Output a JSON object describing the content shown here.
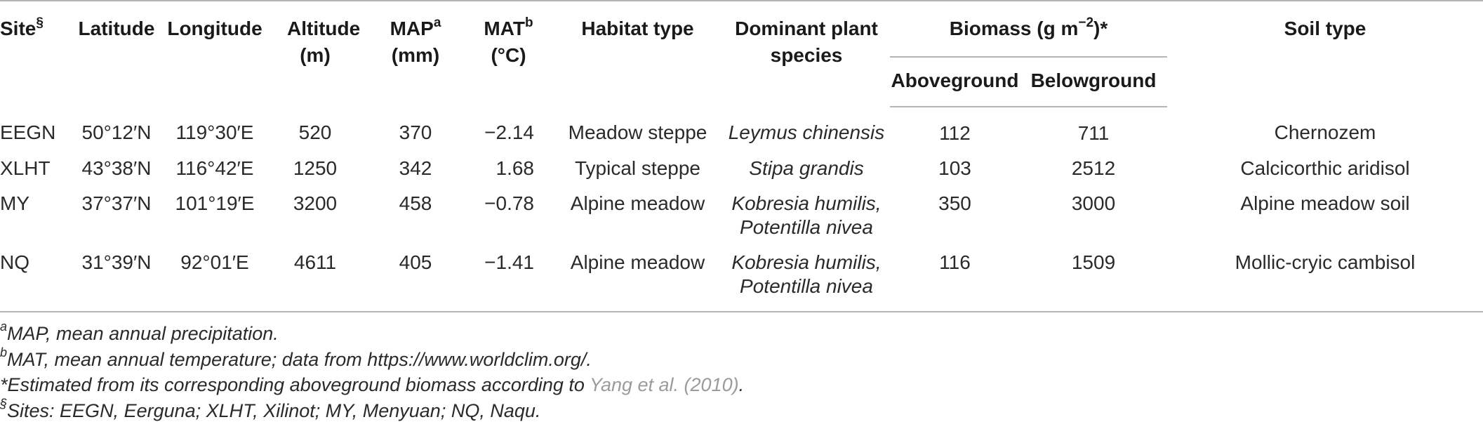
{
  "table": {
    "headers": {
      "site": "Site",
      "site_sup": "§",
      "latitude": "Latitude",
      "longitude": "Longitude",
      "altitude": "Altitude (m)",
      "map": "MAP",
      "map_sup": "a",
      "map_unit": "(mm)",
      "mat": "MAT",
      "mat_sup": "b",
      "mat_unit": "(°C)",
      "habitat": "Habitat type",
      "dominant": "Dominant plant species",
      "biomass": "Biomass (g m",
      "biomass_exp": "−2",
      "biomass_tail": ")*",
      "aboveground": "Aboveground",
      "belowground": "Belowground",
      "soil": "Soil type"
    },
    "rows": [
      {
        "site": "EEGN",
        "latitude": "50°12′N",
        "longitude": "119°30′E",
        "altitude": "520",
        "map": "370",
        "mat": "−2.14",
        "habitat": "Meadow steppe",
        "species_1": "Leymus chinensis",
        "species_2": "",
        "aboveground": "112",
        "belowground": "711",
        "soil": "Chernozem"
      },
      {
        "site": "XLHT",
        "latitude": "43°38′N",
        "longitude": "116°42′E",
        "altitude": "1250",
        "map": "342",
        "mat": "1.68",
        "habitat": "Typical steppe",
        "species_1": "Stipa grandis",
        "species_2": "",
        "aboveground": "103",
        "belowground": "2512",
        "soil": "Calcicorthic aridisol"
      },
      {
        "site": "MY",
        "latitude": "37°37′N",
        "longitude": "101°19′E",
        "altitude": "3200",
        "map": "458",
        "mat": "−0.78",
        "habitat": "Alpine meadow",
        "species_1": "Kobresia humilis,",
        "species_2": "Potentilla nivea",
        "aboveground": "350",
        "belowground": "3000",
        "soil": "Alpine meadow soil"
      },
      {
        "site": "NQ",
        "latitude": "31°39′N",
        "longitude": "92°01′E",
        "altitude": "4611",
        "map": "405",
        "mat": "−1.41",
        "habitat": "Alpine meadow",
        "species_1": "Kobresia humilis,",
        "species_2": "Potentilla nivea",
        "aboveground": "116",
        "belowground": "1509",
        "soil": "Mollic-cryic cambisol"
      }
    ]
  },
  "footnotes": {
    "a_mark": "a",
    "a_text": "MAP, mean annual precipitation.",
    "b_mark": "b",
    "b_text": "MAT, mean annual temperature; data from https://www.worldclim.org/.",
    "star_text": "*Estimated from its corresponding aboveground biomass according to ",
    "star_ref": "Yang et al. (2010)",
    "star_end": ".",
    "s_mark": "§",
    "s_text": "Sites: EEGN, Eerguna; XLHT, Xilinot; MY, Menyuan; NQ, Naqu."
  },
  "colors": {
    "rule": "#b5b5b5",
    "text": "#2a2a2a",
    "link_reference": "#9b9b9b"
  }
}
